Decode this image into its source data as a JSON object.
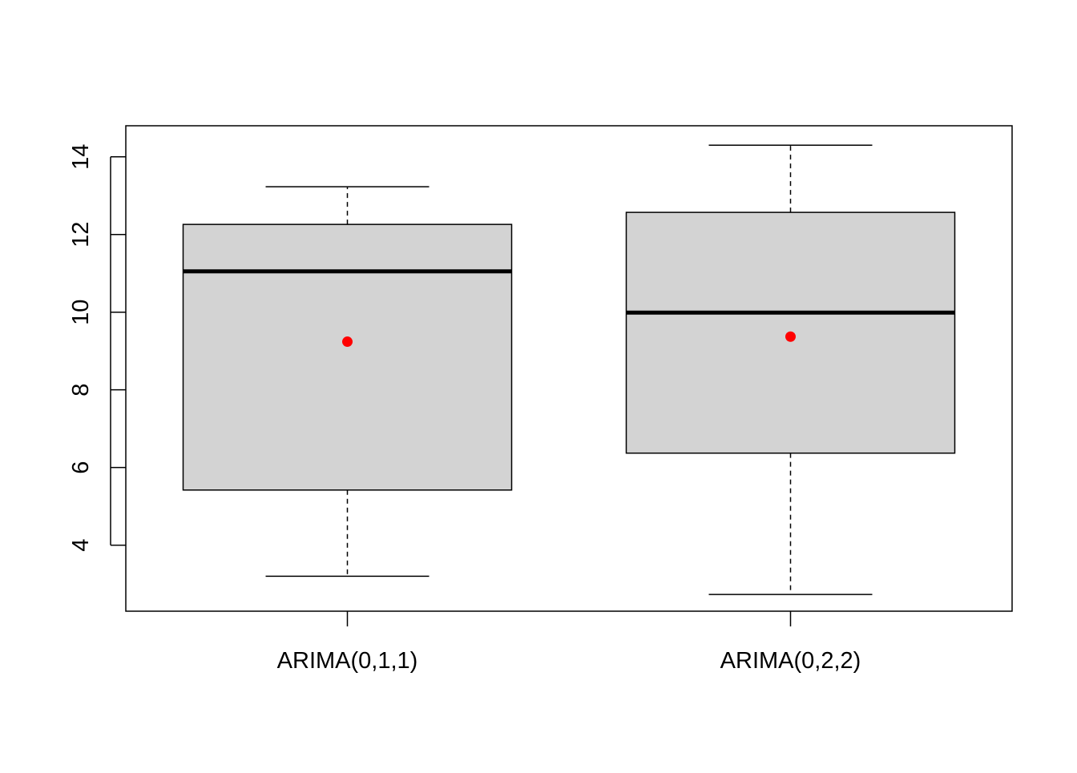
{
  "chart_data": {
    "type": "boxplot",
    "title": "",
    "xlabel": "",
    "ylabel": "",
    "categories": [
      "ARIMA(0,1,1)",
      "ARIMA(0,2,2)"
    ],
    "boxes": [
      {
        "label": "ARIMA(0,1,1)",
        "whisker_low": 3.2,
        "q1": 5.42,
        "median": 11.05,
        "q3": 12.26,
        "whisker_high": 13.23,
        "mean": 9.24
      },
      {
        "label": "ARIMA(0,2,2)",
        "whisker_low": 2.73,
        "q1": 6.37,
        "median": 9.99,
        "q3": 12.57,
        "whisker_high": 14.3,
        "mean": 9.37
      }
    ],
    "ylim": [
      2.3,
      14.8
    ],
    "yticks": [
      4,
      6,
      8,
      10,
      12,
      14
    ],
    "grid": false,
    "legend": "none",
    "colors": {
      "box_fill": "#d3d3d3",
      "mean_point": "#ff0000",
      "line": "#000000"
    }
  }
}
